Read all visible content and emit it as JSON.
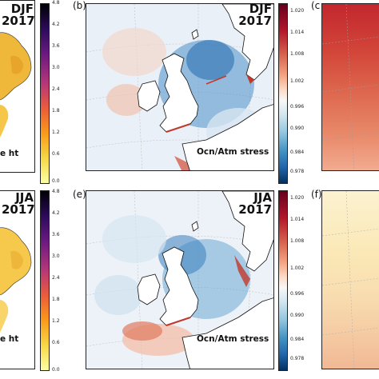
{
  "panels": {
    "a_top": {
      "title_line1": "DJF",
      "title_line2": "2017",
      "caption": "e ht"
    },
    "a_bottom": {
      "title_line1": "JJA",
      "title_line2": "2017",
      "caption": "e ht"
    },
    "b": {
      "label": "(b)",
      "title_line1": "DJF",
      "title_line2": "2017",
      "caption": "Ocn/Atm stress"
    },
    "e": {
      "label": "(e)",
      "title_line1": "JJA",
      "title_line2": "2017",
      "caption": "Ocn/Atm stress"
    },
    "c": {
      "label": "(c"
    },
    "f": {
      "label": "(f)"
    }
  },
  "colorbar_wave": {
    "ticks_top": [
      "4.8",
      "4.2",
      "3.6",
      "3.0",
      "2.4",
      "1.8",
      "1.2",
      "0.6",
      "0.0"
    ],
    "ticks_bottom": [
      "4.8",
      "4.2",
      "3.6",
      "3.0",
      "2.4",
      "1.8",
      "1.2",
      "0.6",
      "0.0"
    ],
    "colors": [
      "#000000",
      "#3b0f70",
      "#8c2981",
      "#dd4a68",
      "#f98e09",
      "#fcd225",
      "#fcffa4"
    ]
  },
  "colorbar_stress": {
    "ticks_top": [
      "1.020",
      "1.014",
      "1.008",
      "1.002",
      "0.996",
      "0.990",
      "0.984",
      "0.978"
    ],
    "ticks_bottom": [
      "1.020",
      "1.014",
      "1.008",
      "1.002",
      "0.996",
      "0.990",
      "0.984",
      "0.978"
    ],
    "colors": [
      "#67001f",
      "#d6604d",
      "#fddbc7",
      "#f7f7f7",
      "#d1e5f0",
      "#4393c3",
      "#053061"
    ]
  }
}
